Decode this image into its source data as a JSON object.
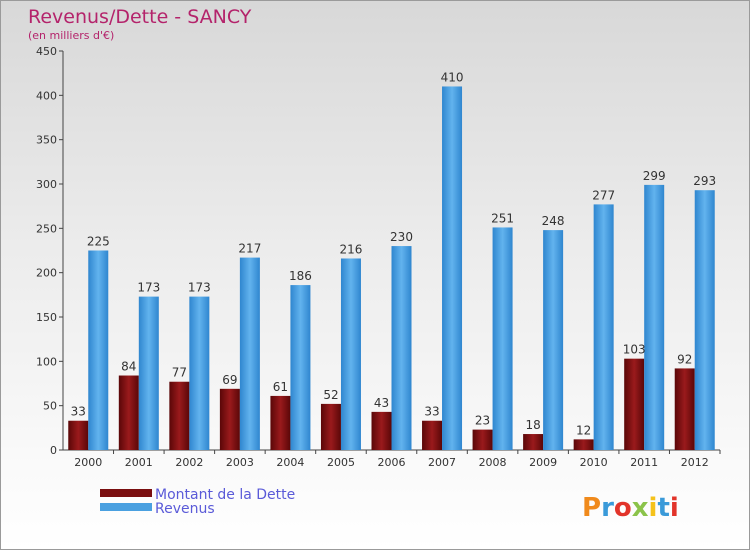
{
  "chart_data": {
    "type": "bar",
    "title": "Revenus/Dette - SANCY",
    "subtitle": "(en milliers d'€)",
    "categories": [
      "2000",
      "2001",
      "2002",
      "2003",
      "2004",
      "2005",
      "2006",
      "2007",
      "2008",
      "2009",
      "2010",
      "2011",
      "2012"
    ],
    "series": [
      {
        "name": "Montant de la Dette",
        "color": "#7a0f10",
        "values": [
          33,
          84,
          77,
          69,
          61,
          52,
          43,
          33,
          23,
          18,
          12,
          103,
          92
        ]
      },
      {
        "name": "Revenus",
        "color": "#4aa0e0",
        "values": [
          225,
          173,
          173,
          217,
          186,
          216,
          230,
          410,
          251,
          248,
          277,
          299,
          293
        ]
      }
    ],
    "ylim": [
      0,
      450
    ],
    "yticks": [
      0,
      50,
      100,
      150,
      200,
      250,
      300,
      350,
      400,
      450
    ],
    "xlabel": "",
    "ylabel": "",
    "grid": false,
    "legend": "bottom-left"
  },
  "logo": {
    "text": "Proxiti",
    "colors": [
      "#f08a1c",
      "#3a9ad9",
      "#e2342a",
      "#8bc34a",
      "#f5c21b",
      "#3a9ad9",
      "#e2342a"
    ]
  }
}
